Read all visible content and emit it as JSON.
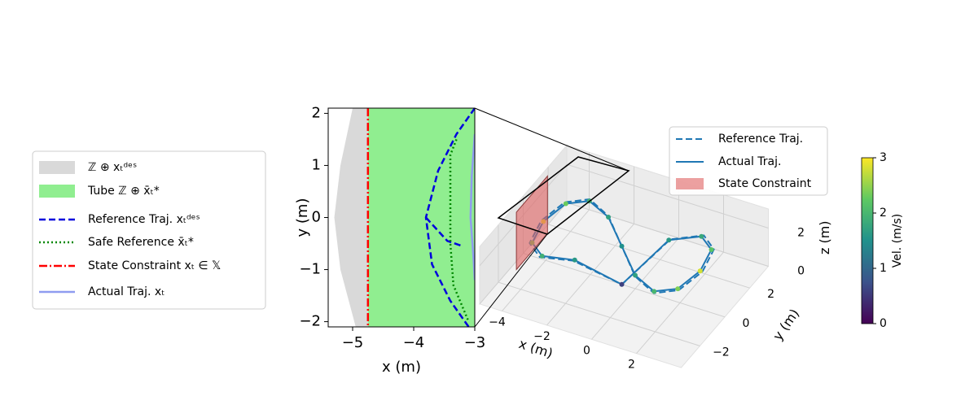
{
  "chart_data": [
    {
      "type": "line",
      "xlabel": "x (m)",
      "ylabel": "y (m)",
      "xlim": [
        -5.4,
        -3
      ],
      "ylim": [
        -2.1,
        2.1
      ],
      "xticks": [
        {
          "value": -5,
          "label": "−5"
        },
        {
          "value": -4,
          "label": "−4"
        },
        {
          "value": -3,
          "label": "−3"
        }
      ],
      "yticks": [
        {
          "value": -2,
          "label": "−2"
        },
        {
          "value": -1,
          "label": "−1"
        },
        0,
        1,
        2
      ],
      "series": [
        {
          "name": "ℤ ⊕ xₜᵈᵉˢ",
          "kind": "area",
          "color": "#d9d9d9",
          "x": [
            -5.0,
            -5.2,
            -5.3,
            -5.2,
            -4.95,
            -3,
            -3
          ],
          "y": [
            2.1,
            1,
            0,
            -1,
            -2.1,
            -2.1,
            2.1
          ]
        },
        {
          "name": "Tube ℤ ⊕ x̄ₜ*",
          "kind": "area",
          "color": "#90ee90",
          "x": [
            -4.75,
            -4.75,
            -3,
            -3
          ],
          "y": [
            2.1,
            -2.1,
            -2.1,
            2.1
          ]
        },
        {
          "name": "Reference Traj. xₜᵈᵉˢ",
          "kind": "line",
          "style": "dashed",
          "color": "#0000dd",
          "x": [
            -3,
            -3.3,
            -3.6,
            -3.8,
            -3.7,
            -3.4,
            -3.1,
            null,
            -3.8,
            -3.45,
            -3.2
          ],
          "y": [
            2.1,
            1.6,
            0.9,
            0,
            -0.9,
            -1.6,
            -2.1,
            null,
            0,
            -0.45,
            -0.55
          ]
        },
        {
          "name": "Safe Reference x̄ₜ*",
          "kind": "line",
          "style": "dotted",
          "color": "#008800",
          "x": [
            -3.3,
            -3.4,
            -3.4,
            -3.4,
            -3.35,
            -3.1
          ],
          "y": [
            1.5,
            1.2,
            0,
            -0.5,
            -1.3,
            -2.0
          ]
        },
        {
          "name": "State Constraint xₜ ∈ 𝕏",
          "kind": "line",
          "style": "dashdot",
          "color": "#ff0000",
          "x": [
            -4.75,
            -4.75
          ],
          "y": [
            2.1,
            -2.1
          ]
        },
        {
          "name": "Actual Traj. xₜ",
          "kind": "line",
          "style": "solid",
          "color": "#8f9cf0",
          "x": [
            -3.0,
            -3.05,
            -3.07,
            -3.02,
            -3.0
          ],
          "y": [
            1.6,
            0.8,
            0,
            -0.8,
            -1.2
          ]
        }
      ]
    },
    {
      "type": "line3d",
      "xlabel": "x (m)",
      "ylabel": "y (m)",
      "zlabel": "z (m)",
      "xlim": [
        -5,
        4
      ],
      "ylim": [
        -3.5,
        3.5
      ],
      "zlim": [
        0,
        3
      ],
      "xticks": [
        {
          "value": -4,
          "label": "−4"
        },
        {
          "value": -2,
          "label": "−2"
        },
        0,
        2
      ],
      "yticks": [
        {
          "value": -2,
          "label": "−2"
        },
        0,
        2
      ],
      "zticks": [
        0,
        2
      ],
      "series": [
        {
          "name": "Reference Traj.",
          "kind": "line",
          "style": "dashed",
          "color": "#1f77b4",
          "x": [
            3.0,
            2.73,
            1.95,
            0.78,
            -0.6,
            -1.98,
            -3.15,
            -3.93,
            -4.2,
            -3.93,
            -3.15,
            -1.98,
            -0.6,
            0.78,
            1.95,
            2.73,
            3.0
          ],
          "y": [
            0,
            1.41,
            2,
            1.41,
            0,
            -1.41,
            -2,
            -1.41,
            0,
            1.41,
            2,
            1.41,
            0,
            -1.41,
            -2,
            -1.41,
            0
          ],
          "z": [
            2,
            2,
            2,
            1.8,
            0,
            1.8,
            2,
            2,
            2,
            2,
            2,
            2,
            2,
            2,
            2,
            2,
            2
          ]
        },
        {
          "name": "Actual Traj.",
          "kind": "line",
          "style": "solid",
          "color": "#1f77b4",
          "colormap": "viridis",
          "x": [
            2.9,
            2.65,
            1.9,
            0.75,
            -0.6,
            -1.95,
            -3.1,
            -3.85,
            -4.1,
            -3.85,
            -3.1,
            -1.95,
            -0.6,
            0.75,
            1.9,
            2.65,
            2.9
          ],
          "y": [
            0,
            1.35,
            1.9,
            1.35,
            0,
            -1.35,
            -1.9,
            -1.35,
            0,
            1.35,
            1.9,
            1.35,
            0,
            -1.35,
            -1.9,
            -1.35,
            0
          ],
          "z": [
            2,
            2,
            2,
            1.8,
            0,
            1.8,
            2,
            2,
            2,
            2,
            2,
            2,
            2,
            2,
            2,
            2,
            2
          ],
          "velocity": [
            2.8,
            2.2,
            1.8,
            1.6,
            0.6,
            1.6,
            1.9,
            2.3,
            2.9,
            2.3,
            1.9,
            1.7,
            1.5,
            1.7,
            2.0,
            2.4,
            2.8
          ]
        },
        {
          "name": "State Constraint",
          "kind": "area",
          "color": "#e06060",
          "x": [
            -4.75,
            -4.75,
            -4.75,
            -4.75
          ],
          "y": [
            -1,
            1.5,
            1.5,
            -1
          ],
          "z": [
            0,
            0,
            3,
            3
          ]
        }
      ],
      "colorbar": {
        "label": "Vel. (m/s)",
        "lim": [
          0,
          3
        ],
        "ticks": [
          0,
          1,
          2,
          3
        ]
      }
    }
  ]
}
